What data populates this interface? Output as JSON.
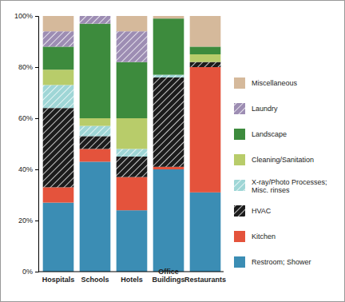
{
  "chart_data": {
    "type": "bar",
    "stacked": true,
    "legend": "right",
    "categories": [
      "Hospitals",
      "Schools",
      "Hotels",
      "Office Buildings",
      "Restaurants"
    ],
    "ylim": [
      0,
      100
    ],
    "yticks": [
      {
        "value": 0,
        "label": "0%"
      },
      {
        "value": 20,
        "label": "20%"
      },
      {
        "value": 40,
        "label": "40%"
      },
      {
        "value": 60,
        "label": "60%"
      },
      {
        "value": 80,
        "label": "80%"
      },
      {
        "value": 100,
        "label": "100%"
      }
    ],
    "series": [
      {
        "name": "Restroom; Shower",
        "color": "#3b8db4",
        "values": [
          27,
          43,
          24,
          40,
          31
        ]
      },
      {
        "name": "Kitchen",
        "color": "#e4533c",
        "values": [
          6,
          5,
          13,
          1,
          49
        ]
      },
      {
        "name": "HVAC",
        "color": "#1c1c1c",
        "values": [
          31,
          5,
          8,
          35,
          2
        ]
      },
      {
        "name": "X-ray/Photo Processes; Misc. rinses",
        "color": "#9fd6d6",
        "values": [
          9,
          4,
          3,
          1,
          0
        ]
      },
      {
        "name": "Cleaning/Sanitation",
        "color": "#b8cc6a",
        "values": [
          6,
          3,
          12,
          0,
          3
        ]
      },
      {
        "name": "Landscape",
        "color": "#3d8b3d",
        "values": [
          9,
          37,
          22,
          22,
          3
        ]
      },
      {
        "name": "Laundry",
        "color": "#9d8db3",
        "values": [
          6,
          3,
          12,
          0,
          0
        ]
      },
      {
        "name": "Miscellaneous",
        "color": "#d5b99b",
        "values": [
          6,
          0,
          6,
          1,
          12
        ]
      }
    ]
  }
}
